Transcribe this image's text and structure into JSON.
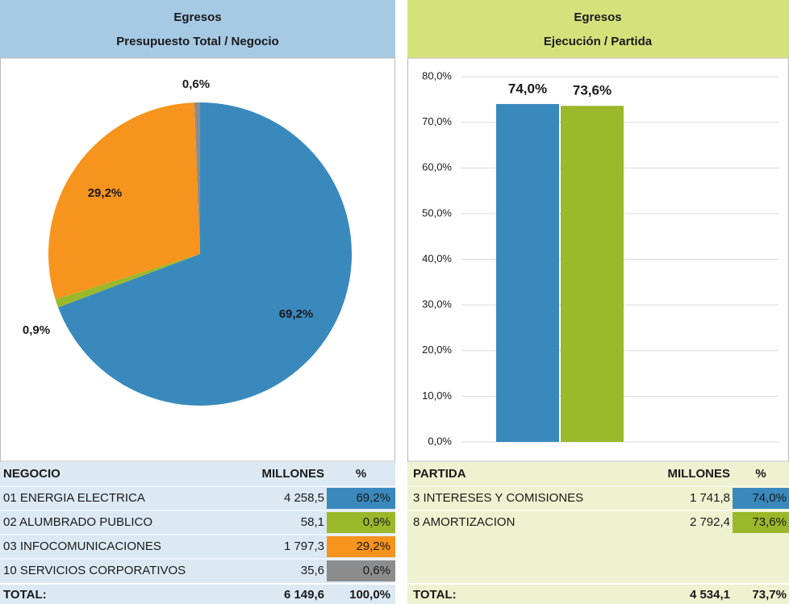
{
  "chart_data": [
    {
      "type": "pie",
      "title": "Egresos",
      "subtitle": "Presupuesto Total / Negocio",
      "values": [
        69.2,
        0.9,
        29.2,
        0.6
      ],
      "value_labels": [
        "69,2%",
        "0,9%",
        "29,2%",
        "0,6%"
      ],
      "colors": [
        "#3a89bd",
        "#9bb82a",
        "#f7941d",
        "#8c8c8c"
      ]
    },
    {
      "type": "bar",
      "title": "Egresos",
      "subtitle": "Ejecución / Partida",
      "values": [
        74.0,
        73.6
      ],
      "value_labels": [
        "74,0%",
        "73,6%"
      ],
      "colors": [
        "#3a89bd",
        "#9bb82a"
      ],
      "ylim": [
        0,
        80
      ],
      "yticks": [
        {
          "value": 0,
          "label": "0,0%"
        },
        {
          "value": 10,
          "label": "10,0%"
        },
        {
          "value": 20,
          "label": "20,0%"
        },
        {
          "value": 30,
          "label": "30,0%"
        },
        {
          "value": 40,
          "label": "40,0%"
        },
        {
          "value": 50,
          "label": "50,0%"
        },
        {
          "value": 60,
          "label": "60,0%"
        },
        {
          "value": 70,
          "label": "70,0%"
        },
        {
          "value": 80,
          "label": "80,0%"
        }
      ],
      "grid": true
    }
  ],
  "tables": [
    {
      "header": [
        "NEGOCIO",
        "MILLONES",
        "%"
      ],
      "rows": [
        [
          "01 ENERGIA ELECTRICA",
          "4 258,5",
          "69,2%"
        ],
        [
          "02 ALUMBRADO PUBLICO",
          "58,1",
          "0,9%"
        ],
        [
          "03 INFOCOMUNICACIONES",
          "1 797,3",
          "29,2%"
        ],
        [
          "10 SERVICIOS CORPORATIVOS",
          "35,6",
          "0,6%"
        ]
      ],
      "total": [
        "TOTAL:",
        "6 149,6",
        "100,0%"
      ]
    },
    {
      "header": [
        "PARTIDA",
        "MILLONES",
        "%"
      ],
      "rows": [
        [
          "3 INTERESES Y COMISIONES",
          "1 741,8",
          "74,0%"
        ],
        [
          "8 AMORTIZACION",
          "2 792,4",
          "73,6%"
        ]
      ],
      "total": [
        "TOTAL:",
        "4 534,1",
        "73,7%"
      ]
    }
  ]
}
